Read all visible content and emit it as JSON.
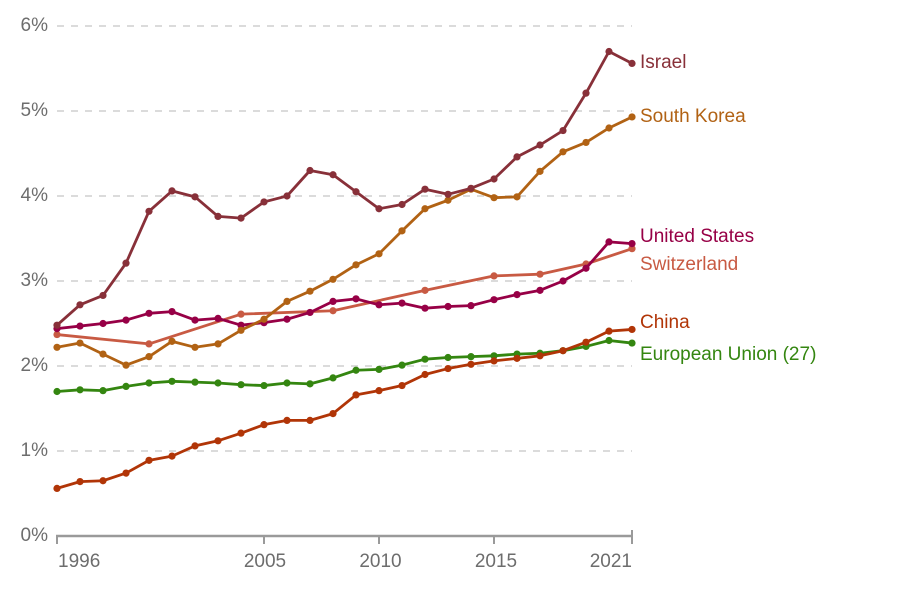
{
  "chart_data": {
    "type": "line",
    "title": "",
    "xlabel": "",
    "ylabel": "",
    "unit_suffix": "%",
    "xlim": [
      1996,
      2021
    ],
    "ylim": [
      0,
      6
    ],
    "grid": "horizontal-dashed",
    "legend_position": "right-of-line-ends",
    "y_tick_labels": [
      "0%",
      "1%",
      "2%",
      "3%",
      "4%",
      "5%",
      "6%"
    ],
    "x_tick_labels": [
      "1996",
      "2005",
      "2010",
      "2015",
      "2021"
    ],
    "x_ticks": [
      1996,
      2005,
      2010,
      2015,
      2021
    ],
    "axis_color": "#9a9a9a",
    "gridline_color": "#d6d6d6",
    "tick_label_color": "#6d6d6d",
    "series": [
      {
        "key": "switzerland",
        "name": "Switzerland",
        "color": "#c85a43",
        "label_dy": 16,
        "years": [
          1996,
          2000,
          2004,
          2008,
          2012,
          2015,
          2017,
          2019,
          2021
        ],
        "values": [
          2.37,
          2.26,
          2.61,
          2.65,
          2.89,
          3.06,
          3.08,
          3.2,
          3.38
        ]
      },
      {
        "key": "european-union-27",
        "name": "European Union (27)",
        "color": "#348610",
        "label_dy": 12,
        "years": [
          1996,
          1997,
          1998,
          1999,
          2000,
          2001,
          2002,
          2003,
          2004,
          2005,
          2006,
          2007,
          2008,
          2009,
          2010,
          2011,
          2012,
          2013,
          2014,
          2015,
          2016,
          2017,
          2018,
          2019,
          2020,
          2021
        ],
        "values": [
          1.7,
          1.72,
          1.71,
          1.76,
          1.8,
          1.82,
          1.81,
          1.8,
          1.78,
          1.77,
          1.8,
          1.79,
          1.86,
          1.95,
          1.96,
          2.01,
          2.08,
          2.1,
          2.11,
          2.12,
          2.14,
          2.15,
          2.18,
          2.23,
          2.3,
          2.27
        ]
      },
      {
        "key": "china",
        "name": "China",
        "color": "#b13507",
        "label_dy": -6,
        "years": [
          1996,
          1997,
          1998,
          1999,
          2000,
          2001,
          2002,
          2003,
          2004,
          2005,
          2006,
          2007,
          2008,
          2009,
          2010,
          2011,
          2012,
          2013,
          2014,
          2015,
          2016,
          2017,
          2018,
          2019,
          2020,
          2021
        ],
        "values": [
          0.56,
          0.64,
          0.65,
          0.74,
          0.89,
          0.94,
          1.06,
          1.12,
          1.21,
          1.31,
          1.36,
          1.36,
          1.44,
          1.66,
          1.71,
          1.77,
          1.9,
          1.97,
          2.02,
          2.06,
          2.09,
          2.12,
          2.18,
          2.28,
          2.41,
          2.43
        ]
      },
      {
        "key": "united-states",
        "name": "United States",
        "color": "#970046",
        "label_dy": -7,
        "years": [
          1996,
          1997,
          1998,
          1999,
          2000,
          2001,
          2002,
          2003,
          2004,
          2005,
          2006,
          2007,
          2008,
          2009,
          2010,
          2011,
          2012,
          2013,
          2014,
          2015,
          2016,
          2017,
          2018,
          2019,
          2020,
          2021
        ],
        "values": [
          2.44,
          2.47,
          2.5,
          2.54,
          2.62,
          2.64,
          2.54,
          2.56,
          2.48,
          2.51,
          2.55,
          2.63,
          2.76,
          2.79,
          2.72,
          2.74,
          2.68,
          2.7,
          2.71,
          2.78,
          2.84,
          2.89,
          3.0,
          3.15,
          3.46,
          3.44
        ]
      },
      {
        "key": "south-korea",
        "name": "South Korea",
        "color": "#b16214",
        "label_dy": 0,
        "years": [
          1996,
          1997,
          1998,
          1999,
          2000,
          2001,
          2002,
          2003,
          2004,
          2005,
          2006,
          2007,
          2008,
          2009,
          2010,
          2011,
          2012,
          2013,
          2014,
          2015,
          2016,
          2017,
          2018,
          2019,
          2020,
          2021
        ],
        "values": [
          2.22,
          2.27,
          2.14,
          2.01,
          2.11,
          2.29,
          2.22,
          2.26,
          2.42,
          2.55,
          2.76,
          2.88,
          3.02,
          3.19,
          3.32,
          3.59,
          3.85,
          3.95,
          4.08,
          3.98,
          3.99,
          4.29,
          4.52,
          4.63,
          4.8,
          4.93
        ]
      },
      {
        "key": "israel",
        "name": "Israel",
        "color": "#883039",
        "label_dy": 0,
        "years": [
          1996,
          1997,
          1998,
          1999,
          2000,
          2001,
          2002,
          2003,
          2004,
          2005,
          2006,
          2007,
          2008,
          2009,
          2010,
          2011,
          2012,
          2013,
          2014,
          2015,
          2016,
          2017,
          2018,
          2019,
          2020,
          2021
        ],
        "values": [
          2.48,
          2.72,
          2.83,
          3.21,
          3.82,
          4.06,
          3.99,
          3.76,
          3.74,
          3.93,
          4.0,
          4.3,
          4.25,
          4.05,
          3.85,
          3.9,
          4.08,
          4.02,
          4.09,
          4.2,
          4.46,
          4.6,
          4.77,
          5.21,
          5.7,
          5.56
        ]
      }
    ]
  }
}
